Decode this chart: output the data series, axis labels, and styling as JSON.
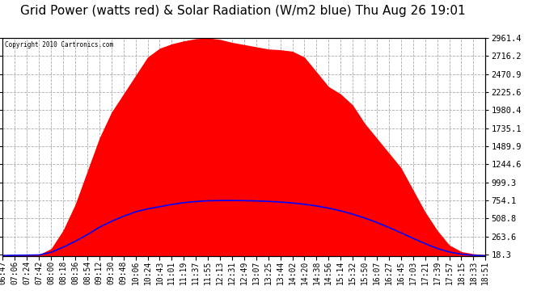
{
  "title": "Grid Power (watts red) & Solar Radiation (W/m2 blue) Thu Aug 26 19:01",
  "copyright": "Copyright 2010 Cartronics.com",
  "background_color": "#ffffff",
  "plot_bg_color": "#ffffff",
  "yticks": [
    18.3,
    263.6,
    508.8,
    754.1,
    999.3,
    1244.6,
    1489.9,
    1735.1,
    1980.4,
    2225.6,
    2470.9,
    2716.2,
    2961.4
  ],
  "ymin": 0,
  "ymax": 2961.4,
  "x_labels": [
    "06:47",
    "07:06",
    "07:24",
    "07:42",
    "08:00",
    "08:18",
    "08:36",
    "08:54",
    "09:12",
    "09:30",
    "09:48",
    "10:06",
    "10:24",
    "10:43",
    "11:01",
    "11:19",
    "11:37",
    "11:55",
    "12:13",
    "12:31",
    "12:49",
    "13:07",
    "13:25",
    "13:44",
    "14:02",
    "14:20",
    "14:38",
    "14:56",
    "15:14",
    "15:32",
    "15:50",
    "16:07",
    "16:27",
    "16:45",
    "17:03",
    "17:21",
    "17:39",
    "17:57",
    "18:15",
    "18:33",
    "18:51"
  ],
  "grid_color": "#aaaaaa",
  "fill_color": "#ff0000",
  "line_color": "#0000ff",
  "title_fontsize": 11,
  "tick_fontsize": 7,
  "gp_vals": [
    18,
    18,
    18,
    18,
    100,
    350,
    700,
    1150,
    1600,
    1950,
    2200,
    2450,
    2700,
    2820,
    2880,
    2920,
    2950,
    2961,
    2940,
    2900,
    2870,
    2840,
    2810,
    2800,
    2780,
    2700,
    2500,
    2300,
    2200,
    2050,
    1800,
    1600,
    1400,
    1200,
    900,
    600,
    350,
    150,
    60,
    30,
    18
  ],
  "sr_vals": [
    5,
    10,
    12,
    15,
    50,
    120,
    200,
    290,
    390,
    470,
    540,
    600,
    640,
    670,
    700,
    725,
    740,
    750,
    754,
    754,
    752,
    748,
    742,
    733,
    720,
    703,
    680,
    650,
    613,
    568,
    516,
    455,
    388,
    315,
    240,
    168,
    103,
    55,
    25,
    10,
    4
  ]
}
